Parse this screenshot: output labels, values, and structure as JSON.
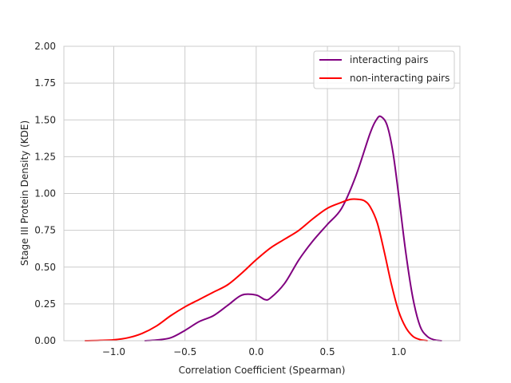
{
  "chart_data": {
    "type": "line",
    "title": "",
    "xlabel": "Correlation Coefficient (Spearman)",
    "ylabel": "Stage III Protein Density (KDE)",
    "xlim": [
      -1.35,
      1.43
    ],
    "ylim": [
      0,
      2.0
    ],
    "xticks": [
      -1.0,
      -0.5,
      0.0,
      0.5,
      1.0
    ],
    "xtick_labels": [
      "−1.0",
      "−0.5",
      "0.0",
      "0.5",
      "1.0"
    ],
    "yticks": [
      0,
      0.25,
      0.5,
      0.75,
      1.0,
      1.25,
      1.5,
      1.75,
      2.0
    ],
    "ytick_labels": [
      "0.00",
      "0.25",
      "0.50",
      "0.75",
      "1.00",
      "1.25",
      "1.50",
      "1.75",
      "2.00"
    ],
    "grid": true,
    "legend_position": "top-right",
    "series": [
      {
        "name": "interacting pairs",
        "color": "#800080",
        "x": [
          -0.78,
          -0.7,
          -0.6,
          -0.5,
          -0.4,
          -0.3,
          -0.2,
          -0.1,
          0.0,
          0.06,
          0.1,
          0.2,
          0.3,
          0.4,
          0.5,
          0.6,
          0.7,
          0.8,
          0.85,
          0.88,
          0.92,
          0.96,
          1.0,
          1.05,
          1.1,
          1.15,
          1.2,
          1.25,
          1.3
        ],
        "y": [
          0.0,
          0.005,
          0.02,
          0.07,
          0.13,
          0.17,
          0.24,
          0.31,
          0.31,
          0.28,
          0.29,
          0.39,
          0.55,
          0.68,
          0.79,
          0.9,
          1.12,
          1.41,
          1.51,
          1.52,
          1.46,
          1.28,
          0.99,
          0.6,
          0.29,
          0.1,
          0.03,
          0.006,
          0.0
        ]
      },
      {
        "name": "non-interacting pairs",
        "color": "#ff0000",
        "x": [
          -1.2,
          -1.1,
          -1.0,
          -0.9,
          -0.8,
          -0.7,
          -0.6,
          -0.5,
          -0.4,
          -0.3,
          -0.2,
          -0.1,
          0.0,
          0.1,
          0.2,
          0.3,
          0.4,
          0.5,
          0.6,
          0.66,
          0.72,
          0.76,
          0.8,
          0.85,
          0.9,
          0.95,
          1.0,
          1.05,
          1.1,
          1.15,
          1.2
        ],
        "y": [
          0.0,
          0.002,
          0.006,
          0.02,
          0.05,
          0.1,
          0.17,
          0.23,
          0.28,
          0.33,
          0.38,
          0.46,
          0.55,
          0.63,
          0.69,
          0.75,
          0.83,
          0.9,
          0.94,
          0.96,
          0.96,
          0.95,
          0.91,
          0.8,
          0.6,
          0.38,
          0.2,
          0.09,
          0.03,
          0.008,
          0.0
        ]
      }
    ]
  }
}
